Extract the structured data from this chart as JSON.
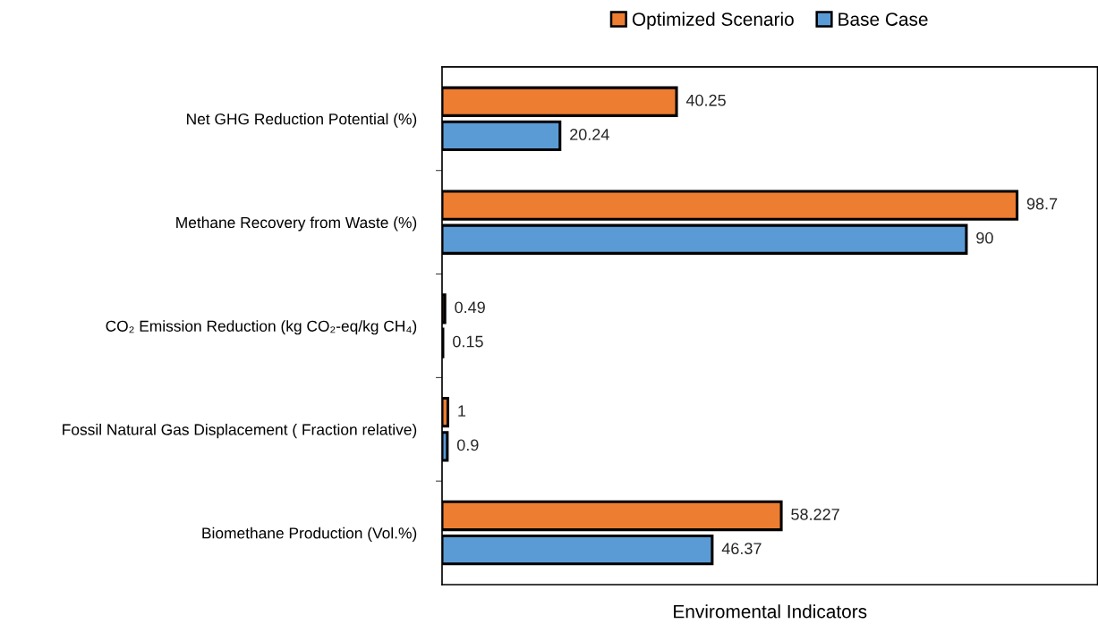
{
  "chart_data": {
    "type": "bar",
    "orientation": "horizontal",
    "xlabel": "Enviromental Indicators",
    "categories": [
      "Net GHG Reduction Potential (%)",
      "Methane Recovery from Waste (%)",
      "CO₂ Emission Reduction (kg CO₂-eq/kg CH₄)",
      "Fossil Natural Gas Displacement ( Fraction relative)",
      "Biomethane Production (Vol.%)"
    ],
    "series": [
      {
        "name": "Optimized Scenario",
        "color": "#ed7d31",
        "values": [
          40.25,
          98.7,
          0.49,
          1,
          58.227
        ]
      },
      {
        "name": "Base Case",
        "color": "#5b9bd5",
        "values": [
          20.24,
          90,
          0.15,
          0.9,
          46.37
        ]
      }
    ],
    "data_labels": true,
    "legend": "top",
    "grid": false
  }
}
